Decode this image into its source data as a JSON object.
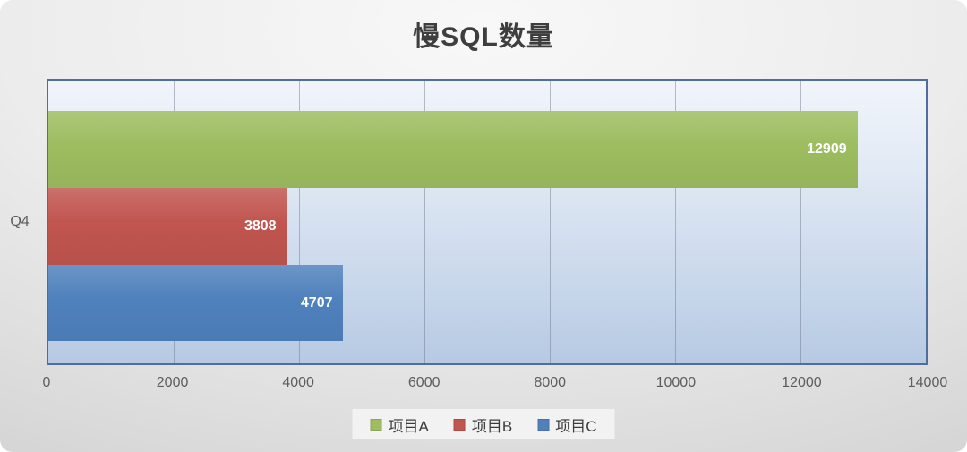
{
  "chart_data": {
    "type": "bar",
    "orientation": "horizontal",
    "title": "慢SQL数量",
    "categories": [
      "Q4"
    ],
    "series": [
      {
        "name": "项目A",
        "values": [
          12909
        ],
        "color": "#9dbd60"
      },
      {
        "name": "项目B",
        "values": [
          3808
        ],
        "color": "#c1554f"
      },
      {
        "name": "项目C",
        "values": [
          4707
        ],
        "color": "#4f81bd"
      }
    ],
    "xlim": [
      0,
      14000
    ],
    "x_ticks": [
      0,
      2000,
      4000,
      6000,
      8000,
      10000,
      12000,
      14000
    ],
    "grid": true,
    "legend_position": "bottom",
    "value_labels": "inside-end",
    "colors": {
      "plot_border": "#4e6f9d",
      "plot_bg_top": "#f1f5fb",
      "plot_bg_bottom": "#b6cae3",
      "canvas_bg": "#d9d9d9",
      "title_text": "#3e3e3e",
      "axis_text": "#5d5d5d",
      "value_label_text": "#ffffff"
    }
  }
}
